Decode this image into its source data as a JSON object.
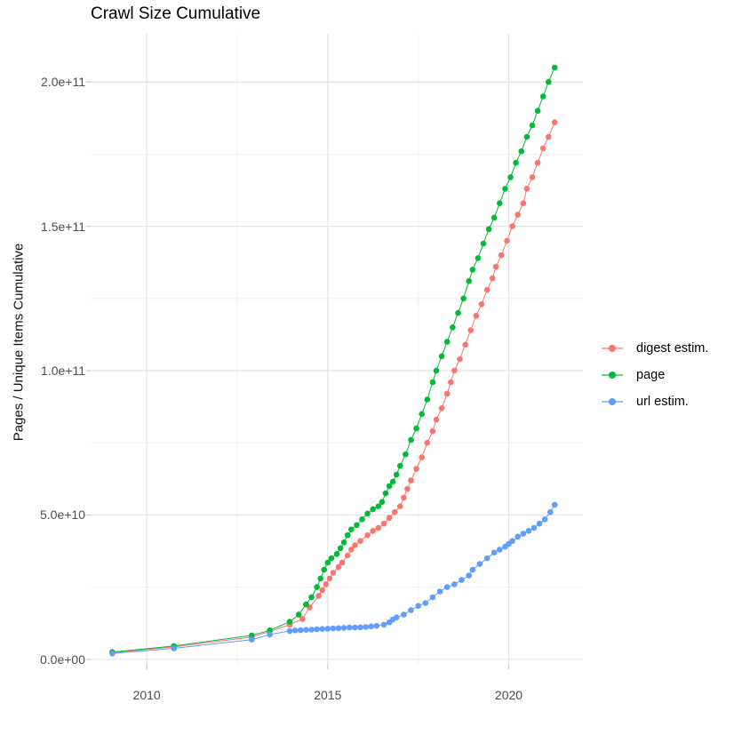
{
  "title": "Crawl Size Cumulative",
  "chart_data": {
    "type": "scatter",
    "title": "Crawl Size Cumulative",
    "xlabel": "",
    "ylabel": "Pages / Unique Items Cumulative",
    "grid": "on",
    "legend_position": "right",
    "xlim": [
      2008.45,
      2022.05
    ],
    "ylim": [
      -1900000000.0,
      216700000000.0
    ],
    "x_ticks": [
      {
        "label": "2010",
        "value": 2010
      },
      {
        "label": "2015",
        "value": 2015
      },
      {
        "label": "2020",
        "value": 2020
      }
    ],
    "x_minor": [
      2012.5,
      2017.5
    ],
    "y_ticks": [
      {
        "label": "0.0e+00",
        "value": 0
      },
      {
        "label": "5.0e+10",
        "value": 50000000000.0
      },
      {
        "label": "1.0e+11",
        "value": 100000000000.0
      },
      {
        "label": "1.5e+11",
        "value": 150000000000.0
      },
      {
        "label": "2.0e+11",
        "value": 200000000000.0
      }
    ],
    "y_minor": [
      25000000000.0,
      75000000000.0,
      125000000000.0,
      175000000000.0
    ],
    "series": [
      {
        "id": "digest-estim",
        "name": "digest estim.",
        "color": "#F8766D",
        "points": [
          [
            2009.05,
            2300000000.0
          ],
          [
            2010.75,
            4300000000.0
          ],
          [
            2012.9,
            7700000000.0
          ],
          [
            2013.4,
            9600000000.0
          ],
          [
            2013.95,
            12000000000.0
          ],
          [
            2014.3,
            14000000000.0
          ],
          [
            2014.5,
            18000000000.0
          ],
          [
            2014.75,
            22000000000.0
          ],
          [
            2014.85,
            24000000000.0
          ],
          [
            2014.95,
            26000000000.0
          ],
          [
            2015.05,
            28000000000.0
          ],
          [
            2015.15,
            30000000000.0
          ],
          [
            2015.3,
            32000000000.0
          ],
          [
            2015.4,
            33500000000.0
          ],
          [
            2015.55,
            36000000000.0
          ],
          [
            2015.65,
            38000000000.0
          ],
          [
            2015.75,
            39500000000.0
          ],
          [
            2015.9,
            41000000000.0
          ],
          [
            2016.1,
            43000000000.0
          ],
          [
            2016.25,
            44500000000.0
          ],
          [
            2016.4,
            45500000000.0
          ],
          [
            2016.55,
            47000000000.0
          ],
          [
            2016.7,
            49000000000.0
          ],
          [
            2016.85,
            51000000000.0
          ],
          [
            2017.0,
            53000000000.0
          ],
          [
            2017.1,
            56000000000.0
          ],
          [
            2017.2,
            59000000000.0
          ],
          [
            2017.3,
            62000000000.0
          ],
          [
            2017.45,
            66000000000.0
          ],
          [
            2017.6,
            70000000000.0
          ],
          [
            2017.75,
            75000000000.0
          ],
          [
            2017.9,
            79000000000.0
          ],
          [
            2018.0,
            83000000000.0
          ],
          [
            2018.15,
            87000000000.0
          ],
          [
            2018.3,
            92000000000.0
          ],
          [
            2018.4,
            96000000000.0
          ],
          [
            2018.5,
            100000000000.0
          ],
          [
            2018.65,
            104000000000.0
          ],
          [
            2018.8,
            109000000000.0
          ],
          [
            2018.95,
            114000000000.0
          ],
          [
            2019.1,
            119000000000.0
          ],
          [
            2019.25,
            123000000000.0
          ],
          [
            2019.4,
            128000000000.0
          ],
          [
            2019.55,
            132000000000.0
          ],
          [
            2019.65,
            136000000000.0
          ],
          [
            2019.8,
            140000000000.0
          ],
          [
            2019.95,
            145000000000.0
          ],
          [
            2020.1,
            150000000000.0
          ],
          [
            2020.25,
            154000000000.0
          ],
          [
            2020.4,
            158000000000.0
          ],
          [
            2020.5,
            163000000000.0
          ],
          [
            2020.65,
            167000000000.0
          ],
          [
            2020.8,
            172000000000.0
          ],
          [
            2020.95,
            177000000000.0
          ],
          [
            2021.1,
            181000000000.0
          ],
          [
            2021.27,
            186000000000.0
          ]
        ]
      },
      {
        "id": "page",
        "name": "page",
        "color": "#00BA38",
        "points": [
          [
            2009.05,
            2500000000.0
          ],
          [
            2010.75,
            4600000000.0
          ],
          [
            2012.9,
            8300000000.0
          ],
          [
            2013.4,
            10000000000.0
          ],
          [
            2013.95,
            13000000000.0
          ],
          [
            2014.2,
            15500000000.0
          ],
          [
            2014.4,
            19000000000.0
          ],
          [
            2014.55,
            21500000000.0
          ],
          [
            2014.7,
            25000000000.0
          ],
          [
            2014.8,
            28000000000.0
          ],
          [
            2014.9,
            31000000000.0
          ],
          [
            2015.0,
            33500000000.0
          ],
          [
            2015.1,
            35000000000.0
          ],
          [
            2015.25,
            36500000000.0
          ],
          [
            2015.35,
            38500000000.0
          ],
          [
            2015.45,
            40500000000.0
          ],
          [
            2015.55,
            43000000000.0
          ],
          [
            2015.65,
            45000000000.0
          ],
          [
            2015.8,
            46500000000.0
          ],
          [
            2015.95,
            48500000000.0
          ],
          [
            2016.1,
            50500000000.0
          ],
          [
            2016.25,
            52000000000.0
          ],
          [
            2016.4,
            53000000000.0
          ],
          [
            2016.5,
            54500000000.0
          ],
          [
            2016.6,
            57500000000.0
          ],
          [
            2016.7,
            60000000000.0
          ],
          [
            2016.8,
            61500000000.0
          ],
          [
            2016.9,
            64000000000.0
          ],
          [
            2017.0,
            67000000000.0
          ],
          [
            2017.15,
            71000000000.0
          ],
          [
            2017.3,
            76000000000.0
          ],
          [
            2017.45,
            80000000000.0
          ],
          [
            2017.6,
            85000000000.0
          ],
          [
            2017.75,
            90000000000.0
          ],
          [
            2017.9,
            96000000000.0
          ],
          [
            2018.0,
            100000000000.0
          ],
          [
            2018.15,
            105000000000.0
          ],
          [
            2018.3,
            110000000000.0
          ],
          [
            2018.45,
            115000000000.0
          ],
          [
            2018.6,
            120000000000.0
          ],
          [
            2018.75,
            125000000000.0
          ],
          [
            2018.9,
            131000000000.0
          ],
          [
            2019.0,
            135000000000.0
          ],
          [
            2019.15,
            139000000000.0
          ],
          [
            2019.3,
            144000000000.0
          ],
          [
            2019.45,
            149000000000.0
          ],
          [
            2019.6,
            153000000000.0
          ],
          [
            2019.75,
            158000000000.0
          ],
          [
            2019.9,
            163000000000.0
          ],
          [
            2020.05,
            167000000000.0
          ],
          [
            2020.2,
            172000000000.0
          ],
          [
            2020.35,
            176000000000.0
          ],
          [
            2020.5,
            181000000000.0
          ],
          [
            2020.65,
            185000000000.0
          ],
          [
            2020.8,
            190000000000.0
          ],
          [
            2020.95,
            195000000000.0
          ],
          [
            2021.1,
            200000000000.0
          ],
          [
            2021.27,
            205000000000.0
          ]
        ]
      },
      {
        "id": "url-estim",
        "name": "url estim.",
        "color": "#619CFF",
        "points": [
          [
            2009.05,
            2000000000.0
          ],
          [
            2010.75,
            3800000000.0
          ],
          [
            2012.9,
            6800000000.0
          ],
          [
            2013.4,
            8600000000.0
          ],
          [
            2013.95,
            9800000000.0
          ],
          [
            2014.1,
            10000000000.0
          ],
          [
            2014.25,
            10100000000.0
          ],
          [
            2014.4,
            10200000000.0
          ],
          [
            2014.55,
            10300000000.0
          ],
          [
            2014.7,
            10400000000.0
          ],
          [
            2014.85,
            10500000000.0
          ],
          [
            2015.0,
            10600000000.0
          ],
          [
            2015.15,
            10700000000.0
          ],
          [
            2015.3,
            10800000000.0
          ],
          [
            2015.45,
            10900000000.0
          ],
          [
            2015.6,
            11000000000.0
          ],
          [
            2015.75,
            11000000000.0
          ],
          [
            2015.9,
            11100000000.0
          ],
          [
            2016.05,
            11200000000.0
          ],
          [
            2016.2,
            11400000000.0
          ],
          [
            2016.35,
            11600000000.0
          ],
          [
            2016.55,
            12000000000.0
          ],
          [
            2016.7,
            12800000000.0
          ],
          [
            2016.8,
            13800000000.0
          ],
          [
            2016.9,
            14500000000.0
          ],
          [
            2017.1,
            15500000000.0
          ],
          [
            2017.3,
            17000000000.0
          ],
          [
            2017.5,
            18500000000.0
          ],
          [
            2017.7,
            19500000000.0
          ],
          [
            2017.9,
            21500000000.0
          ],
          [
            2018.1,
            23500000000.0
          ],
          [
            2018.3,
            25000000000.0
          ],
          [
            2018.5,
            26000000000.0
          ],
          [
            2018.7,
            27500000000.0
          ],
          [
            2018.9,
            29000000000.0
          ],
          [
            2019.0,
            31000000000.0
          ],
          [
            2019.2,
            33000000000.0
          ],
          [
            2019.4,
            35000000000.0
          ],
          [
            2019.6,
            37000000000.0
          ],
          [
            2019.75,
            38000000000.0
          ],
          [
            2019.9,
            39000000000.0
          ],
          [
            2020.0,
            40000000000.0
          ],
          [
            2020.1,
            41000000000.0
          ],
          [
            2020.25,
            42500000000.0
          ],
          [
            2020.4,
            43500000000.0
          ],
          [
            2020.55,
            44500000000.0
          ],
          [
            2020.7,
            45500000000.0
          ],
          [
            2020.85,
            47000000000.0
          ],
          [
            2021.0,
            48500000000.0
          ],
          [
            2021.15,
            51000000000.0
          ],
          [
            2021.27,
            53500000000.0
          ]
        ]
      }
    ],
    "legend": [
      {
        "id": "digest-estim",
        "label": "digest estim.",
        "color": "#F8766D"
      },
      {
        "id": "page",
        "label": "page",
        "color": "#00BA38"
      },
      {
        "id": "url-estim",
        "label": "url estim.",
        "color": "#619CFF"
      }
    ],
    "style": {
      "grid_major_color": "#E3E3E3",
      "grid_minor_color": "#F0F0F0",
      "axis_tick_color": "#BFBFBF",
      "tick_label_color": "#4d4d4d",
      "background": "#ffffff"
    }
  }
}
